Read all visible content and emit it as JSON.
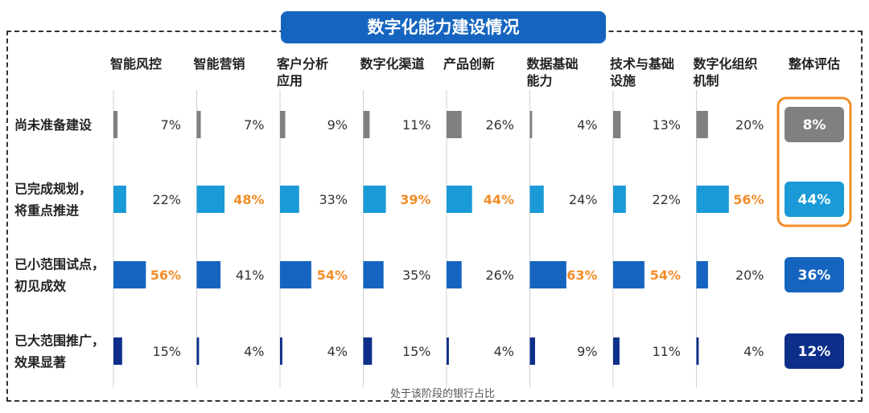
{
  "chart_data": {
    "type": "bar",
    "title": "数字化能力建设情况",
    "xlabel": "处于该阶段的银行占比",
    "categories": [
      "智能风控",
      "智能营销",
      "客户分析应用",
      "数字化渠道",
      "产品创新",
      "数据基础能力",
      "技术与基础设施",
      "数字化组织机制"
    ],
    "category_lines": [
      [
        "智能风控"
      ],
      [
        "智能营销"
      ],
      [
        "客户分析",
        "应用"
      ],
      [
        "数字化渠道"
      ],
      [
        "产品创新"
      ],
      [
        "数据基础",
        "能力"
      ],
      [
        "技术与基础",
        "设施"
      ],
      [
        "数字化组织",
        "机制"
      ]
    ],
    "series": [
      {
        "name": "尚未准备建设",
        "lines": [
          "尚未准备建设"
        ],
        "values": [
          7,
          7,
          9,
          11,
          26,
          4,
          13,
          20
        ],
        "overall": 8,
        "color": "#808080"
      },
      {
        "name": "已完成规划，将重点推进",
        "lines": [
          "已完成规划，",
          "将重点推进"
        ],
        "values": [
          22,
          48,
          33,
          39,
          44,
          24,
          22,
          56
        ],
        "overall": 44,
        "color": "#1a9ad6"
      },
      {
        "name": "已小范围试点，初见成效",
        "lines": [
          "已小范围试点，",
          "初见成效"
        ],
        "values": [
          56,
          41,
          54,
          35,
          26,
          63,
          54,
          20
        ],
        "overall": 36,
        "color": "#1565c0"
      },
      {
        "name": "已大范围推广，效果显著",
        "lines": [
          "已大范围推广，",
          "效果显著"
        ],
        "values": [
          15,
          4,
          4,
          15,
          4,
          9,
          11,
          4
        ],
        "overall": 12,
        "color": "#0d2f8a"
      }
    ],
    "overall_label": "整体评估",
    "unit": "%",
    "highlight_color": "#f28c28",
    "highlighted_cells": [
      [
        1,
        1
      ],
      [
        1,
        3
      ],
      [
        1,
        4
      ],
      [
        1,
        7
      ],
      [
        2,
        0
      ],
      [
        2,
        2
      ],
      [
        2,
        5
      ],
      [
        2,
        6
      ]
    ],
    "highlighted_overall_rows": [
      0,
      1
    ]
  }
}
